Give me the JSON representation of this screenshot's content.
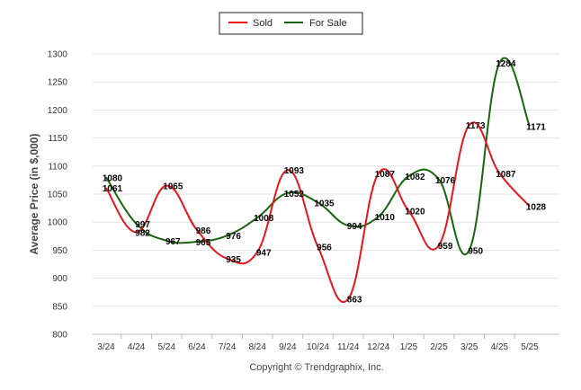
{
  "chart_data": {
    "type": "line",
    "title": "",
    "xlabel": "",
    "ylabel": "Average Price (in $,000)",
    "categories": [
      "3/24",
      "4/24",
      "5/24",
      "6/24",
      "7/24",
      "8/24",
      "9/24",
      "10/24",
      "11/24",
      "12/24",
      "1/25",
      "2/25",
      "3/25",
      "4/25",
      "5/25"
    ],
    "ylim": [
      800,
      1300
    ],
    "yticks": [
      800,
      850,
      900,
      950,
      1000,
      1050,
      1100,
      1150,
      1200,
      1250,
      1300
    ],
    "grid": true,
    "legend_position": "top-center",
    "series": [
      {
        "name": "Sold",
        "color": "#e8161b",
        "values": [
          1061,
          982,
          1065,
          986,
          935,
          947,
          1093,
          956,
          863,
          1087,
          1020,
          959,
          1173,
          1087,
          1028
        ]
      },
      {
        "name": "For Sale",
        "color": "#17650f",
        "values": [
          1080,
          997,
          967,
          965,
          976,
          1008,
          1052,
          1035,
          994,
          1010,
          1082,
          1076,
          950,
          1284,
          1171
        ]
      }
    ]
  },
  "footer": {
    "copyright": "Copyright © Trendgraphix, Inc."
  }
}
